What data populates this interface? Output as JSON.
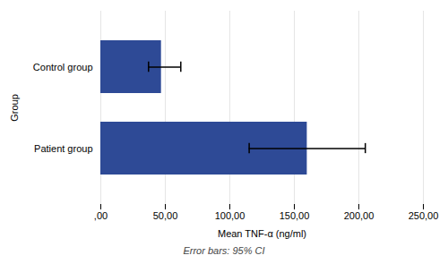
{
  "chart_data": {
    "type": "bar",
    "orientation": "horizontal",
    "categories": [
      "Control group",
      "Patient group"
    ],
    "values": [
      47.0,
      160.0
    ],
    "error_lower": [
      10.0,
      45.0
    ],
    "error_upper": [
      15.0,
      45.0
    ],
    "color": "#2E4A96",
    "xlabel": "Mean TNF-α (ng/ml)",
    "ylabel": "Group",
    "subtitle": "Error bars: 95% CI",
    "xlim": [
      0,
      250
    ],
    "xticks": [
      {
        "value": 0,
        "label": ",00"
      },
      {
        "value": 50,
        "label": "50,00"
      },
      {
        "value": 100,
        "label": "100,00"
      },
      {
        "value": 150,
        "label": "150,00"
      },
      {
        "value": 200,
        "label": "200,00"
      },
      {
        "value": 250,
        "label": "250,00"
      }
    ],
    "grid": true
  }
}
